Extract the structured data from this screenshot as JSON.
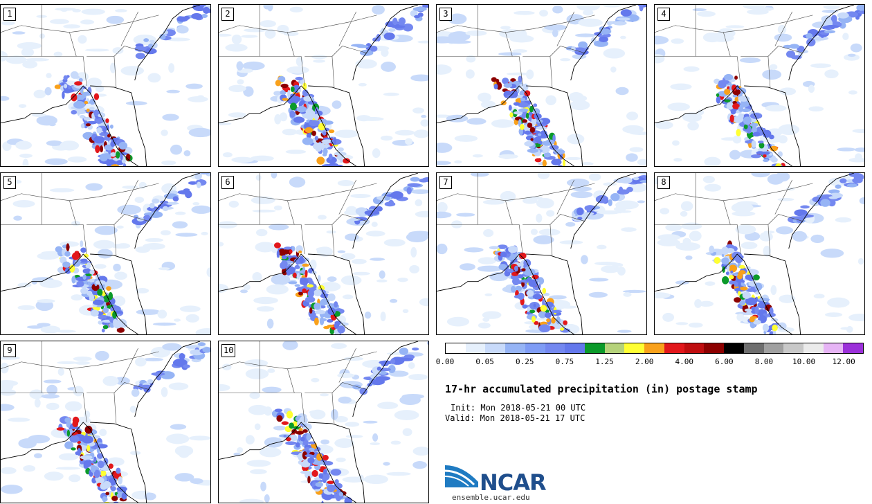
{
  "panels": [
    {
      "number": "1"
    },
    {
      "number": "2"
    },
    {
      "number": "3"
    },
    {
      "number": "4"
    },
    {
      "number": "5"
    },
    {
      "number": "6"
    },
    {
      "number": "7"
    },
    {
      "number": "8"
    },
    {
      "number": "9"
    },
    {
      "number": "10"
    }
  ],
  "colorbar": {
    "colors": [
      "#ffffff",
      "#e6f0fc",
      "#c8dafa",
      "#96b4f5",
      "#7f9cf5",
      "#7488f0",
      "#6478ec",
      "#0b9a2a",
      "#b5d27a",
      "#ffff33",
      "#f9a11b",
      "#e2171b",
      "#bf0d0f",
      "#8c0000",
      "#000000",
      "#6e6e6e",
      "#a0a0a0",
      "#c8c8c8",
      "#ebebeb",
      "#e6b4f5",
      "#9b30d9"
    ],
    "labels": [
      "0.00",
      "0.05",
      "0.25",
      "0.75",
      "1.25",
      "2.00",
      "4.00",
      "6.00",
      "8.00",
      "10.00",
      "12.00"
    ]
  },
  "title": "17-hr accumulated precipitation (in) postage stamp",
  "init": "Init: Mon 2018-05-21 00 UTC",
  "valid": "Valid: Mon 2018-05-21 17 UTC",
  "logo": {
    "text": "NCAR",
    "url": "ensemble.ucar.edu"
  }
}
